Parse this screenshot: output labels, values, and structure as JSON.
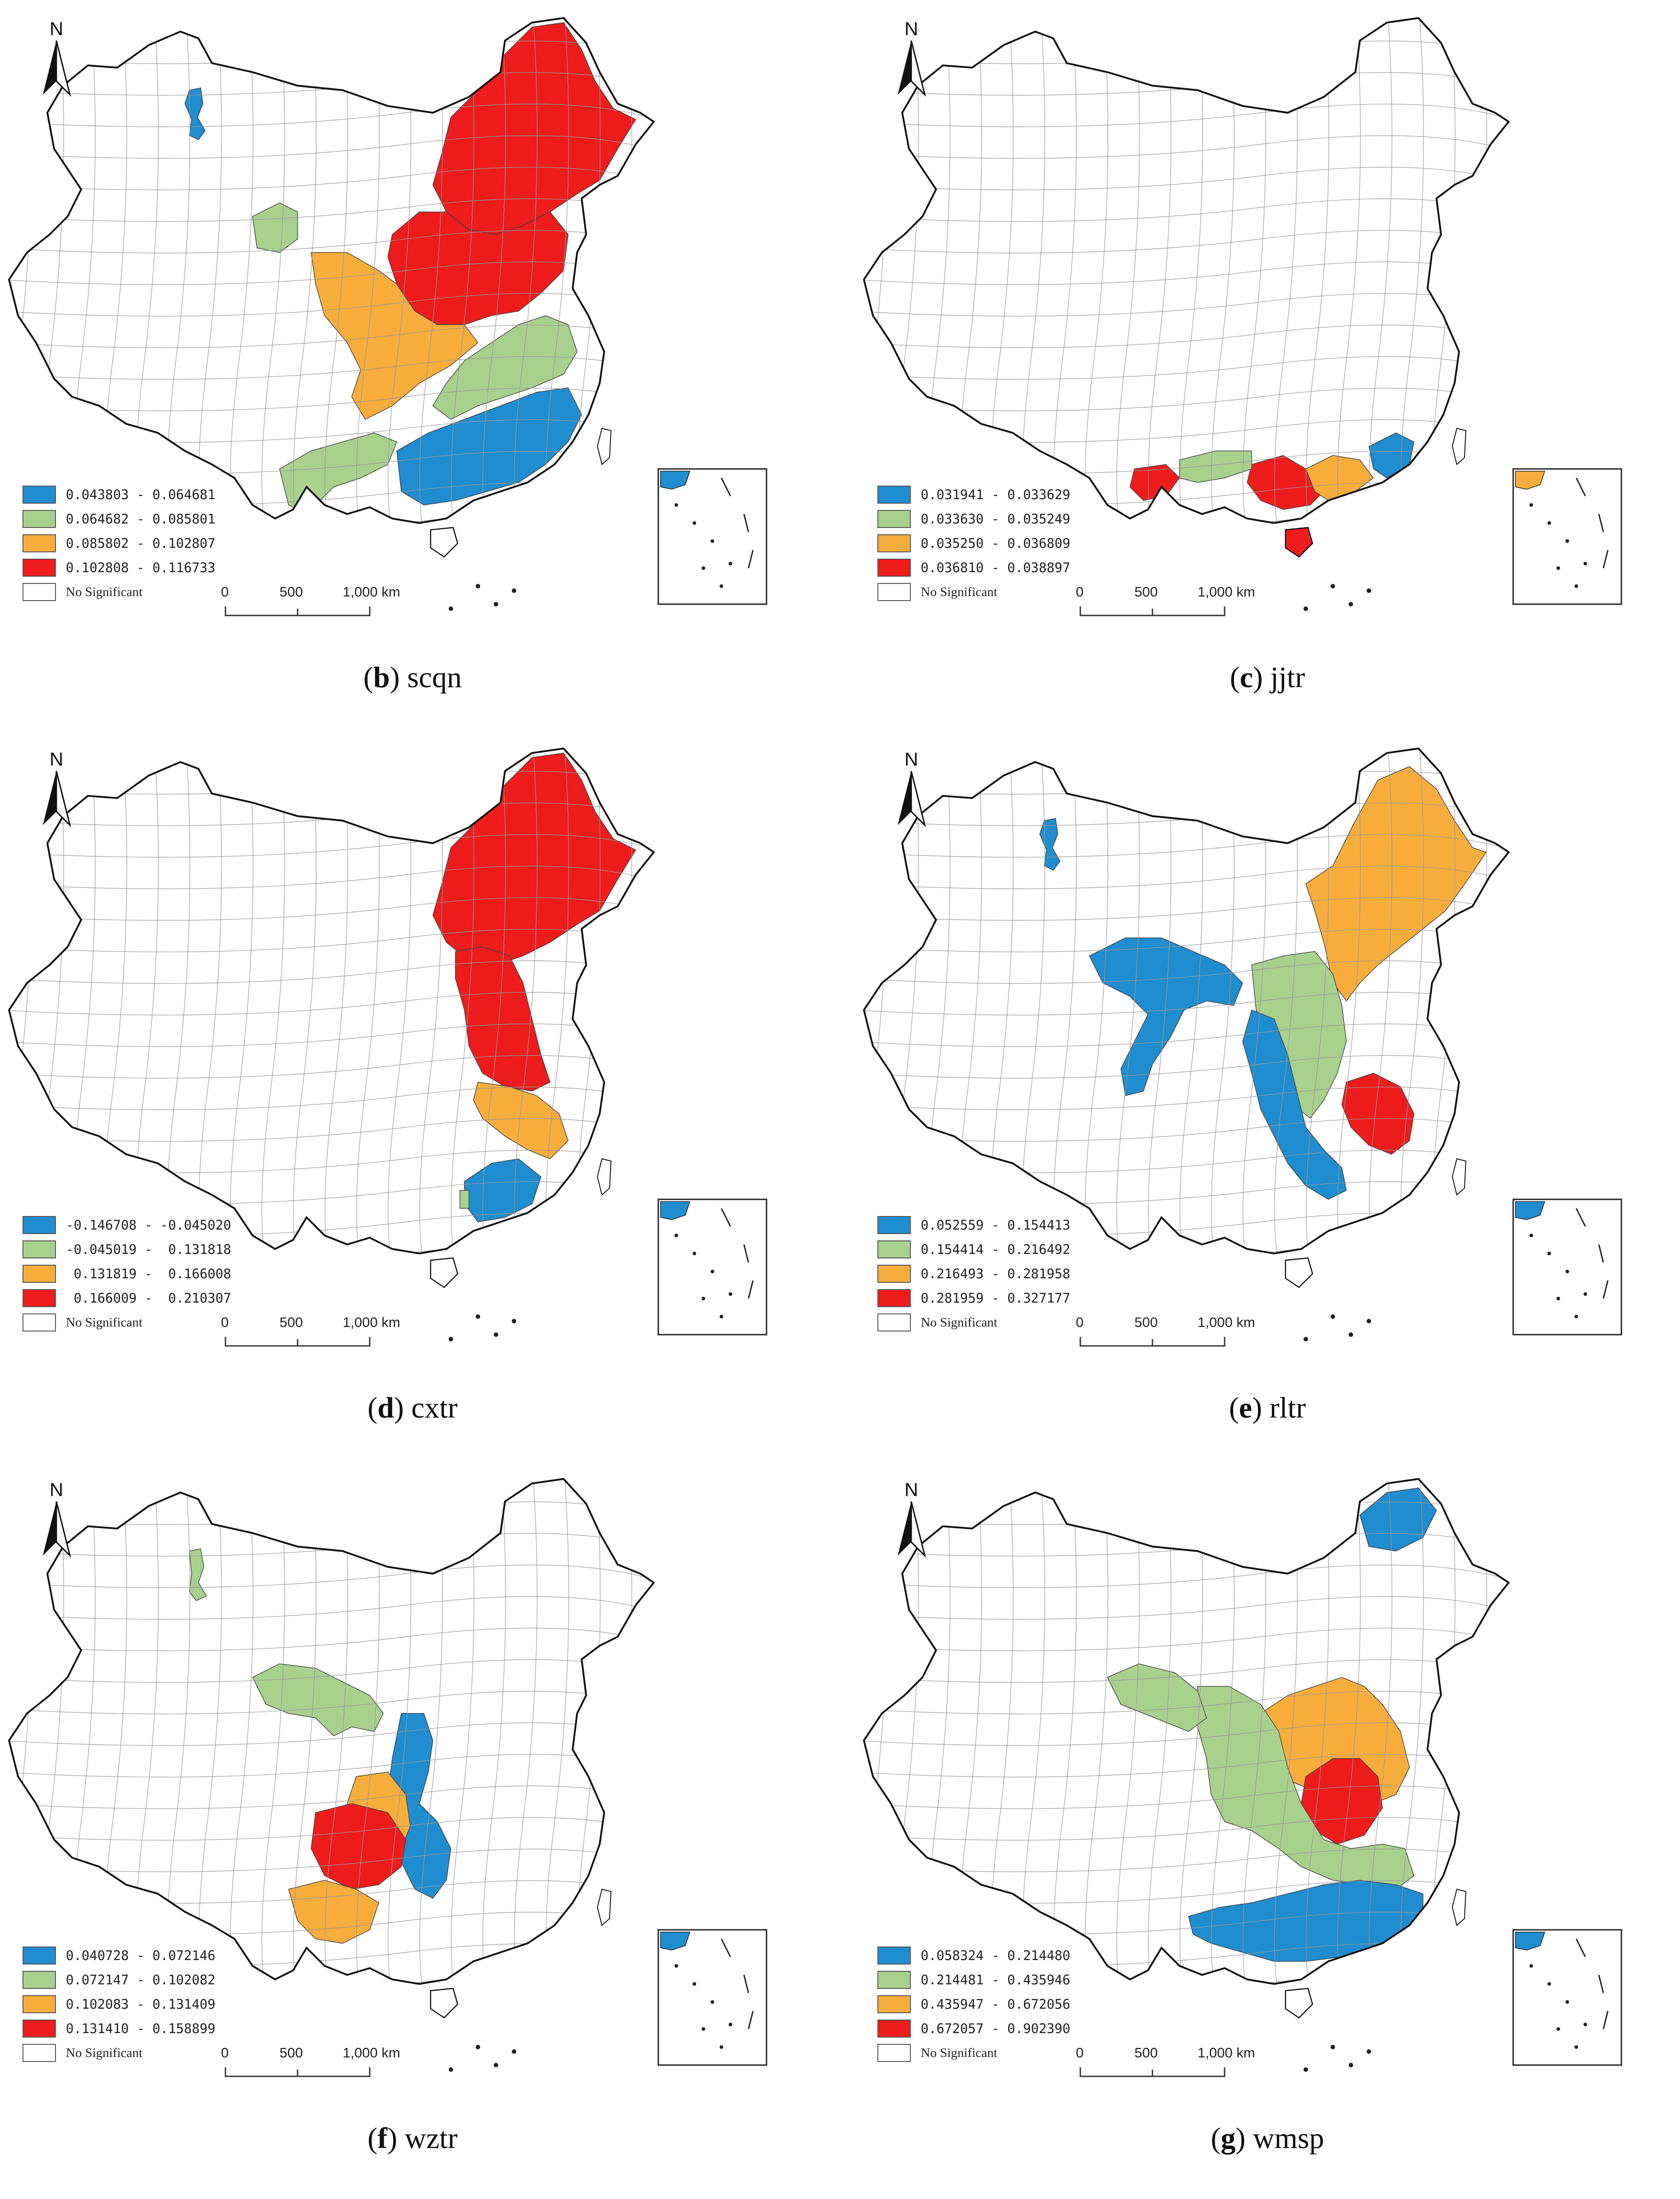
{
  "colors": {
    "blue": "#1f8dcf",
    "green": "#a9d18e",
    "orange": "#f7ad3c",
    "red": "#ee1c1c",
    "white": "#ffffff",
    "outline": "#111111",
    "boundary": "#9a9a9a"
  },
  "north_label": "N",
  "scale_labels": [
    "0",
    "500",
    "1,000 km"
  ],
  "no_significant_label": "No Significant",
  "panels": [
    {
      "letter": "b",
      "name": "scqn",
      "legend": [
        "0.043803 - 0.064681",
        "0.064682 - 0.085801",
        "0.085802 - 0.102807",
        "0.102808 - 0.116733"
      ],
      "regions": [
        "red-northeast",
        "red-north",
        "orange-northcentral",
        "green-east",
        "blue-south",
        "green-southwest",
        "green-xinjiang",
        "blue-xinjiang"
      ]
    },
    {
      "letter": "c",
      "name": "jjtr",
      "legend": [
        "0.031941 - 0.033629",
        "0.033630 - 0.035249",
        "0.035250 - 0.036809",
        "0.036810 - 0.038897"
      ],
      "regions": [
        "red-guangxi",
        "red-yunnan-south",
        "orange-guangdong",
        "green-south",
        "blue-fujian",
        "red-hainan"
      ]
    },
    {
      "letter": "d",
      "name": "cxtr",
      "legend": [
        "-0.146708 - -0.045020",
        "-0.045019 -  0.131818",
        " 0.131819 -  0.166008",
        " 0.166009 -  0.210307"
      ],
      "regions": [
        "red-northeast",
        "red-north-coast",
        "orange-jiangsu-zhejiang",
        "blue-guangdong-fujian",
        "green-guangdong-west"
      ]
    },
    {
      "letter": "e",
      "name": "rltr",
      "legend": [
        "0.052559 - 0.154413",
        "0.154414 - 0.216492",
        "0.216493 - 0.281958",
        "0.281959 - 0.327177"
      ],
      "regions": [
        "orange-northeast",
        "green-north",
        "red-anhui-jiangsu",
        "blue-gansu",
        "blue-central",
        "blue-xinjiang"
      ]
    },
    {
      "letter": "f",
      "name": "wztr",
      "legend": [
        "0.040728 - 0.072146",
        "0.072147 - 0.102082",
        "0.102083 - 0.131409",
        "0.131410 - 0.158899"
      ],
      "regions": [
        "green-qinghai",
        "blue-shaanxi",
        "orange-sichuan",
        "red-sichuan-yunnan",
        "orange-yunnan",
        "green-xinjiang"
      ]
    },
    {
      "letter": "g",
      "name": "wmsp",
      "legend": [
        "0.058324 - 0.214480",
        "0.214481 - 0.435946",
        "0.435947 - 0.672056",
        "0.672057 - 0.902390"
      ],
      "regions": [
        "blue-heilongjiang",
        "orange-north",
        "red-henan",
        "green-central",
        "blue-south",
        "green-qinghai"
      ]
    }
  ]
}
